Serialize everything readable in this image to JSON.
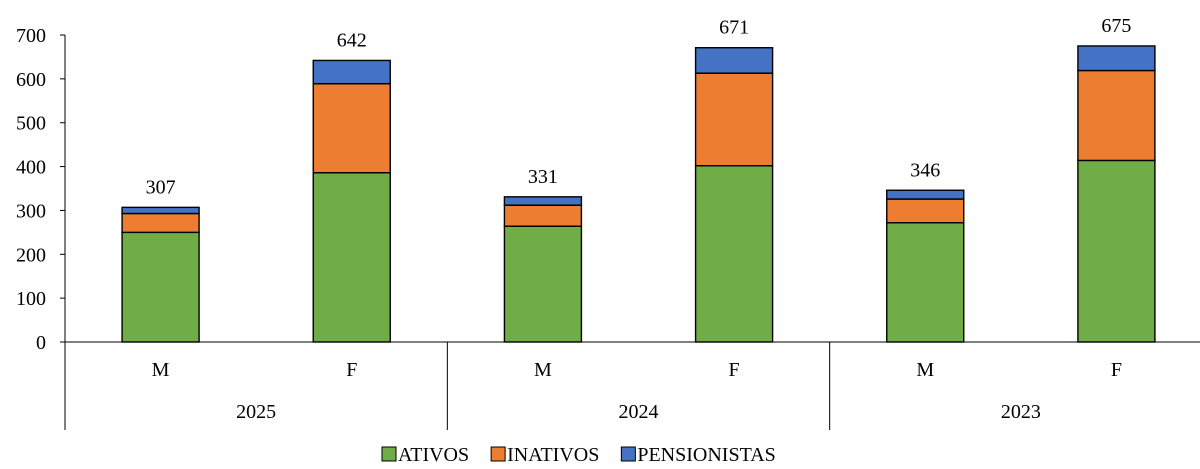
{
  "chart_data": {
    "type": "bar",
    "stacked": true,
    "groups": [
      "2025",
      "2024",
      "2023"
    ],
    "categories": [
      "M",
      "F",
      "M",
      "F",
      "M",
      "F"
    ],
    "series": [
      {
        "name": "ATIVOS",
        "color": "#70AD47",
        "values": [
          250,
          386,
          264,
          402,
          272,
          414
        ]
      },
      {
        "name": "INATIVOS",
        "color": "#ED7D31",
        "values": [
          43,
          203,
          48,
          211,
          54,
          205
        ]
      },
      {
        "name": "PENSIONISTAS",
        "color": "#4472C4",
        "values": [
          14,
          53,
          19,
          58,
          20,
          56
        ]
      }
    ],
    "totals": [
      307,
      642,
      331,
      671,
      346,
      675
    ],
    "ylim": [
      0,
      700
    ],
    "yticks": [
      0,
      100,
      200,
      300,
      400,
      500,
      600,
      700
    ],
    "legend_position": "bottom",
    "grid": false
  }
}
